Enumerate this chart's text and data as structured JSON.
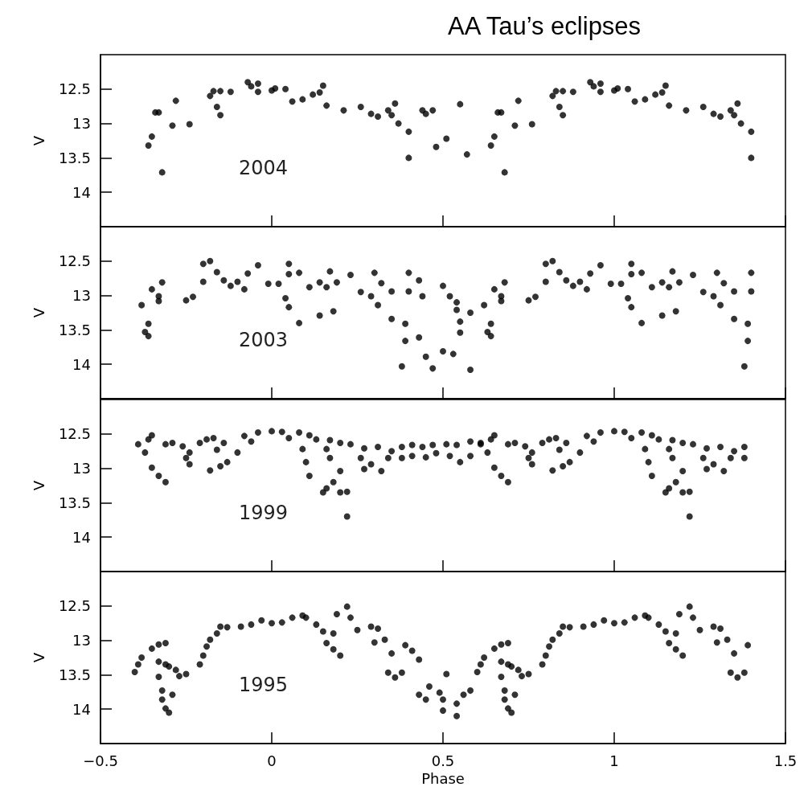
{
  "chart_data": [
    {
      "type": "scatter",
      "title": "AA Tau’s eclipses",
      "ylabel": "V",
      "annotations": [
        "2004"
      ],
      "marker": "circle",
      "xlim": [
        -0.5,
        1.5
      ],
      "xticks": [
        -0.5,
        0,
        0.5,
        1,
        1.5
      ],
      "ylim": [
        14.5,
        12
      ],
      "yticks": [
        12.5,
        13,
        13.5,
        14
      ],
      "tick_labels": "y",
      "series": [
        {
          "color": "#000000",
          "x": [
            -0.36,
            -0.35,
            -0.34,
            -0.33,
            -0.32,
            -0.28,
            -0.29,
            -0.24,
            -0.18,
            -0.17,
            -0.15,
            -0.16,
            -0.15,
            -0.12,
            -0.07,
            -0.06,
            -0.04,
            -0.04,
            0,
            0.01,
            0.04,
            0.06,
            0.09,
            0.12,
            0.14,
            0.15,
            0.16,
            0.21,
            0.26,
            0.29,
            0.31,
            0.34,
            0.36,
            0.35,
            0.37,
            0.4,
            0.4,
            0.44,
            0.47,
            0.45,
            0.48,
            0.51,
            0.55,
            0.57,
            0.64,
            0.65,
            0.66,
            0.67,
            0.68,
            0.72,
            0.71,
            0.76,
            0.82,
            0.83,
            0.85,
            0.84,
            0.85,
            0.88,
            0.93,
            0.94,
            0.96,
            0.96,
            1,
            1.01,
            1.04,
            1.06,
            1.09,
            1.12,
            1.14,
            1.15,
            1.16,
            1.21,
            1.26,
            1.29,
            1.31,
            1.34,
            1.36,
            1.35,
            1.37,
            1.4,
            1.4
          ],
          "values": [
            13.32,
            13.19,
            12.84,
            12.84,
            13.71,
            12.67,
            13.03,
            13.01,
            12.6,
            12.53,
            12.53,
            12.76,
            12.88,
            12.54,
            12.4,
            12.46,
            12.54,
            12.42,
            12.52,
            12.49,
            12.5,
            12.68,
            12.65,
            12.58,
            12.55,
            12.45,
            12.74,
            12.81,
            12.76,
            12.86,
            12.9,
            12.81,
            12.71,
            12.88,
            13.0,
            13.12,
            13.5,
            12.81,
            12.81,
            12.86,
            13.34,
            13.22,
            12.72,
            13.45,
            13.32,
            13.19,
            12.84,
            12.84,
            13.71,
            12.67,
            13.03,
            13.01,
            12.6,
            12.53,
            12.53,
            12.76,
            12.88,
            12.54,
            12.4,
            12.46,
            12.54,
            12.42,
            12.52,
            12.49,
            12.5,
            12.68,
            12.65,
            12.58,
            12.55,
            12.45,
            12.74,
            12.81,
            12.76,
            12.86,
            12.9,
            12.81,
            12.71,
            12.88,
            13.0,
            13.12,
            13.5
          ]
        }
      ]
    },
    {
      "type": "scatter",
      "ylabel": "V",
      "annotations": [
        "2003"
      ],
      "marker": "circle",
      "xlim": [
        -0.5,
        1.5
      ],
      "xticks": [
        -0.5,
        0,
        0.5,
        1,
        1.5
      ],
      "ylim": [
        14.5,
        12
      ],
      "yticks": [
        12.5,
        13,
        13.5,
        14
      ],
      "tick_labels": "y",
      "series": [
        {
          "color": "#000000",
          "x": [
            -0.38,
            -0.37,
            -0.36,
            -0.36,
            -0.35,
            -0.33,
            -0.33,
            -0.32,
            -0.25,
            -0.23,
            -0.2,
            -0.18,
            -0.2,
            -0.16,
            -0.14,
            -0.12,
            -0.1,
            -0.08,
            -0.07,
            -0.04,
            -0.01,
            0.02,
            0.04,
            0.05,
            0.08,
            0.05,
            0.05,
            0.08,
            0.11,
            0.14,
            0.16,
            0.17,
            0.19,
            0.14,
            0.18,
            0.23,
            0.26,
            0.3,
            0.29,
            0.31,
            0.32,
            0.35,
            0.35,
            0.39,
            0.39,
            0.38,
            0.4,
            0.4,
            0.43,
            0.44,
            0.43,
            0.45,
            0.47,
            0.5,
            0.52,
            0.54,
            0.54,
            0.55,
            0.55,
            0.58,
            0.5,
            0.53,
            0.58,
            0.62,
            0.63,
            0.64,
            0.64,
            0.65,
            0.67,
            0.67,
            0.68,
            0.75,
            0.77,
            0.8,
            0.82,
            0.8,
            0.84,
            0.86,
            0.88,
            0.9,
            0.92,
            0.93,
            0.96,
            0.99,
            1.02,
            1.04,
            1.05,
            1.08,
            1.05,
            1.05,
            1.08,
            1.11,
            1.14,
            1.16,
            1.17,
            1.19,
            1.14,
            1.18,
            1.23,
            1.26,
            1.3,
            1.29,
            1.31,
            1.32,
            1.35,
            1.35,
            1.39,
            1.39,
            1.38,
            1.4,
            1.4
          ],
          "values": [
            13.14,
            13.53,
            13.59,
            13.41,
            12.91,
            13.01,
            13.08,
            12.81,
            13.07,
            13.02,
            12.54,
            12.5,
            12.8,
            12.66,
            12.78,
            12.86,
            12.8,
            12.91,
            12.68,
            12.56,
            12.83,
            12.83,
            13.04,
            13.17,
            13.4,
            12.54,
            12.69,
            12.67,
            12.88,
            12.81,
            12.88,
            12.65,
            12.81,
            13.29,
            13.23,
            12.7,
            12.95,
            12.67,
            13.01,
            13.14,
            12.82,
            12.94,
            13.34,
            13.41,
            13.66,
            14.03,
            12.94,
            12.67,
            12.78,
            13.01,
            13.61,
            13.89,
            14.06,
            12.86,
            13.01,
            13.1,
            13.21,
            13.38,
            13.54,
            13.25,
            13.81,
            13.85,
            14.08,
            13.14,
            13.53,
            13.59,
            13.41,
            12.91,
            13.01,
            13.08,
            12.81,
            13.07,
            13.02,
            12.54,
            12.5,
            12.8,
            12.66,
            12.78,
            12.86,
            12.8,
            12.91,
            12.68,
            12.56,
            12.83,
            12.83,
            13.04,
            13.17,
            13.4,
            12.54,
            12.69,
            12.67,
            12.88,
            12.81,
            12.88,
            12.65,
            12.81,
            13.29,
            13.23,
            12.7,
            12.95,
            12.67,
            13.01,
            13.14,
            12.82,
            12.94,
            13.34,
            13.41,
            13.66,
            14.03,
            12.94,
            12.67
          ]
        }
      ]
    },
    {
      "type": "scatter",
      "ylabel": "V",
      "annotations": [
        "1999"
      ],
      "marker": "circle",
      "xlim": [
        -0.5,
        1.5
      ],
      "xticks": [
        -0.5,
        0,
        0.5,
        1,
        1.5
      ],
      "ylim": [
        14.5,
        12
      ],
      "yticks": [
        12.5,
        13,
        13.5,
        14
      ],
      "tick_labels": "y",
      "series": [
        {
          "color": "#000000",
          "x": [
            -0.39,
            -0.37,
            -0.36,
            -0.35,
            -0.35,
            -0.33,
            -0.31,
            -0.31,
            -0.29,
            -0.26,
            -0.24,
            -0.21,
            -0.19,
            -0.17,
            -0.25,
            -0.24,
            -0.18,
            -0.15,
            -0.13,
            -0.1,
            -0.16,
            -0.14,
            -0.08,
            -0.06,
            -0.04,
            0,
            0.03,
            0.05,
            0.08,
            0.11,
            0.13,
            0.17,
            0.2,
            0.23,
            0.09,
            0.1,
            0.11,
            0.16,
            0.17,
            0.2,
            0.15,
            0.16,
            0.18,
            0.2,
            0.22,
            0.22,
            0.26,
            0.27,
            0.29,
            0.32,
            0.27,
            0.31,
            0.35,
            0.38,
            0.34,
            0.38,
            0.41,
            0.44,
            0.47,
            0.51,
            0.54,
            0.58,
            0.61,
            0.41,
            0.45,
            0.48,
            0.52,
            0.55,
            0.58,
            0.61,
            0.63,
            0.64,
            0.65,
            0.65,
            0.67,
            0.69,
            0.69,
            0.71,
            0.74,
            0.76,
            0.79,
            0.81,
            0.83,
            0.75,
            0.76,
            0.82,
            0.85,
            0.87,
            0.9,
            0.84,
            0.86,
            0.92,
            0.94,
            0.96,
            1,
            1.03,
            1.05,
            1.08,
            1.11,
            1.13,
            1.17,
            1.2,
            1.23,
            1.09,
            1.1,
            1.11,
            1.16,
            1.17,
            1.2,
            1.15,
            1.16,
            1.18,
            1.2,
            1.22,
            1.22,
            1.26,
            1.27,
            1.29,
            1.32,
            1.27,
            1.31,
            1.35,
            1.38,
            1.34,
            1.38
          ],
          "values": [
            12.65,
            12.77,
            12.58,
            12.52,
            12.99,
            13.11,
            13.2,
            12.65,
            12.63,
            12.68,
            12.77,
            12.63,
            12.58,
            12.56,
            12.85,
            12.94,
            13.03,
            12.97,
            12.91,
            12.77,
            12.73,
            12.63,
            12.53,
            12.61,
            12.48,
            12.46,
            12.47,
            12.56,
            12.48,
            12.52,
            12.58,
            12.59,
            12.63,
            12.65,
            12.72,
            12.91,
            13.11,
            12.72,
            12.85,
            13.04,
            13.35,
            13.29,
            13.2,
            13.35,
            13.34,
            13.7,
            12.85,
            13.01,
            12.94,
            13.04,
            12.71,
            12.69,
            12.75,
            12.69,
            12.85,
            12.85,
            12.66,
            12.69,
            12.66,
            12.65,
            12.66,
            12.61,
            12.63,
            12.82,
            12.84,
            12.78,
            12.82,
            12.91,
            12.82,
            12.65,
            12.77,
            12.58,
            12.52,
            12.99,
            13.11,
            13.2,
            12.65,
            12.63,
            12.68,
            12.77,
            12.63,
            12.58,
            12.56,
            12.85,
            12.94,
            13.03,
            12.97,
            12.91,
            12.77,
            12.73,
            12.63,
            12.53,
            12.61,
            12.48,
            12.46,
            12.47,
            12.56,
            12.48,
            12.52,
            12.58,
            12.59,
            12.63,
            12.65,
            12.72,
            12.91,
            13.11,
            12.72,
            12.85,
            13.04,
            13.35,
            13.29,
            13.2,
            13.35,
            13.34,
            13.7,
            12.85,
            13.01,
            12.94,
            13.04,
            12.71,
            12.69,
            12.75,
            12.69,
            12.85,
            12.85
          ]
        }
      ]
    },
    {
      "type": "scatter",
      "xlabel": "Phase",
      "ylabel": "V",
      "annotations": [
        "1995"
      ],
      "marker": "circle",
      "xlim": [
        -0.5,
        1.5
      ],
      "xticks": [
        -0.5,
        0,
        0.5,
        1,
        1.5
      ],
      "ylim": [
        14.5,
        12
      ],
      "yticks": [
        12.5,
        13,
        13.5,
        14
      ],
      "series": [
        {
          "color": "#000000",
          "x": [
            -0.4,
            -0.39,
            -0.38,
            -0.35,
            -0.33,
            -0.31,
            -0.33,
            -0.31,
            -0.3,
            -0.28,
            -0.27,
            -0.25,
            -0.33,
            -0.32,
            -0.32,
            -0.31,
            -0.3,
            -0.29,
            -0.21,
            -0.2,
            -0.19,
            -0.18,
            -0.16,
            -0.15,
            -0.13,
            -0.09,
            -0.06,
            -0.03,
            0,
            0.03,
            0.06,
            0.09,
            0.1,
            0.13,
            0.15,
            0.18,
            0.16,
            0.18,
            0.2,
            0.19,
            0.22,
            0.23,
            0.25,
            0.29,
            0.31,
            0.33,
            0.35,
            0.3,
            0.34,
            0.36,
            0.38,
            0.39,
            0.41,
            0.43,
            0.43,
            0.45,
            0.46,
            0.49,
            0.51,
            0.5,
            0.54,
            0.5,
            0.54,
            0.56,
            0.58,
            0.6,
            0.61,
            0.62,
            0.65,
            0.67,
            0.69,
            0.67,
            0.69,
            0.7,
            0.72,
            0.73,
            0.75,
            0.67,
            0.68,
            0.68,
            0.69,
            0.7,
            0.71,
            0.79,
            0.8,
            0.81,
            0.82,
            0.84,
            0.85,
            0.87,
            0.91,
            0.94,
            0.97,
            1,
            1.03,
            1.06,
            1.09,
            1.1,
            1.13,
            1.15,
            1.18,
            1.16,
            1.18,
            1.2,
            1.19,
            1.22,
            1.23,
            1.25,
            1.29,
            1.31,
            1.33,
            1.35,
            1.3,
            1.34,
            1.36,
            1.38,
            1.39
          ],
          "values": [
            13.46,
            13.35,
            13.25,
            13.12,
            13.06,
            13.04,
            13.31,
            13.35,
            13.38,
            13.43,
            13.52,
            13.49,
            13.53,
            13.73,
            13.86,
            13.99,
            14.05,
            13.79,
            13.35,
            13.22,
            13.09,
            12.99,
            12.9,
            12.8,
            12.81,
            12.8,
            12.77,
            12.71,
            12.75,
            12.74,
            12.67,
            12.64,
            12.67,
            12.77,
            12.87,
            12.9,
            13.04,
            13.13,
            13.22,
            12.62,
            12.51,
            12.67,
            12.85,
            12.8,
            12.83,
            12.99,
            13.19,
            13.03,
            13.47,
            13.54,
            13.47,
            13.07,
            13.15,
            13.28,
            13.79,
            13.86,
            13.67,
            13.76,
            13.49,
            13.86,
            13.92,
            14.02,
            14.1,
            13.79,
            13.73,
            13.46,
            13.35,
            13.25,
            13.12,
            13.06,
            13.04,
            13.31,
            13.35,
            13.38,
            13.43,
            13.52,
            13.49,
            13.53,
            13.73,
            13.86,
            13.99,
            14.05,
            13.79,
            13.35,
            13.22,
            13.09,
            12.99,
            12.9,
            12.8,
            12.81,
            12.8,
            12.77,
            12.71,
            12.75,
            12.74,
            12.67,
            12.64,
            12.67,
            12.77,
            12.87,
            12.9,
            13.04,
            13.13,
            13.22,
            12.62,
            12.51,
            12.67,
            12.85,
            12.8,
            12.83,
            12.99,
            13.19,
            13.03,
            13.47,
            13.54,
            13.47,
            13.07
          ]
        }
      ]
    }
  ]
}
